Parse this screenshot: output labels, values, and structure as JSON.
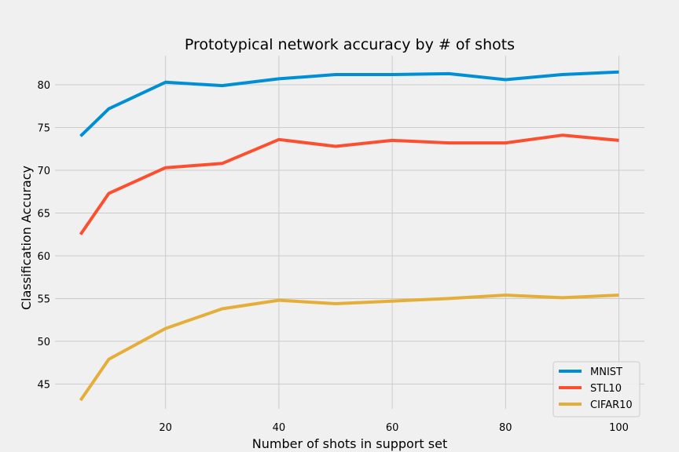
{
  "chart_data": {
    "type": "line",
    "title": "Prototypical network accuracy by # of shots",
    "xlabel": "Number of shots in support set",
    "ylabel": "Classification Accuracy",
    "x": [
      5,
      10,
      20,
      30,
      40,
      50,
      60,
      70,
      80,
      90,
      100
    ],
    "xlim": [
      0.5,
      104.5
    ],
    "ylim": [
      42.1,
      83.4
    ],
    "xticks": [
      20,
      40,
      60,
      80,
      100
    ],
    "yticks": [
      45,
      50,
      55,
      60,
      65,
      70,
      75,
      80
    ],
    "grid": true,
    "legend_position": "bottom-right",
    "series": [
      {
        "name": "MNIST",
        "color": "#008fd5",
        "values": [
          74.0,
          77.2,
          80.3,
          79.9,
          80.7,
          81.2,
          81.2,
          81.3,
          80.6,
          81.2,
          81.5
        ]
      },
      {
        "name": "STL10",
        "color": "#fc4f30",
        "values": [
          62.5,
          67.3,
          70.3,
          70.8,
          73.6,
          72.8,
          73.5,
          73.2,
          73.2,
          74.1,
          73.5
        ]
      },
      {
        "name": "CIFAR10",
        "color": "#e5ae38",
        "values": [
          43.1,
          47.9,
          51.5,
          53.8,
          54.8,
          54.4,
          54.7,
          55.0,
          55.4,
          55.1,
          55.4
        ]
      }
    ]
  }
}
